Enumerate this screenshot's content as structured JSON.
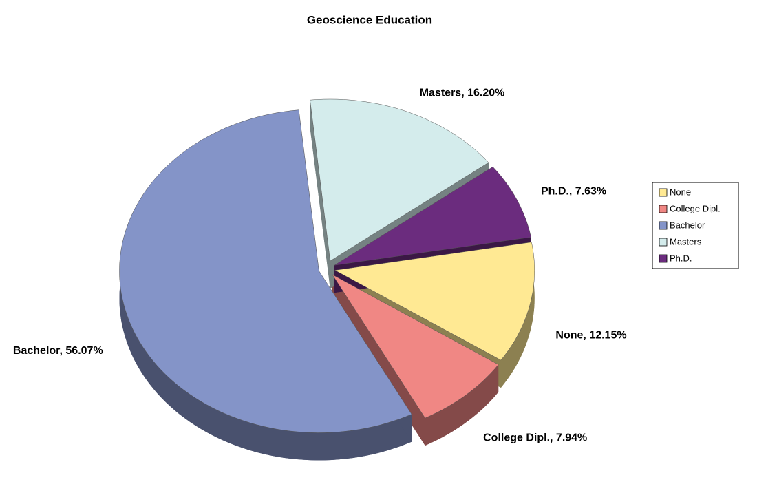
{
  "chart_data": {
    "type": "pie",
    "title": "Geoscience Education",
    "categories": [
      "None",
      "College Dipl.",
      "Bachelor",
      "Masters",
      "Ph.D."
    ],
    "values": [
      12.15,
      7.94,
      56.07,
      16.2,
      7.63
    ],
    "value_labels": [
      "None, 12.15%",
      "College Dipl., 7.94%",
      "Bachelor, 56.07%",
      "Masters, 16.20%",
      "Ph.D., 7.63%"
    ],
    "colors": [
      "#ffe993",
      "#f08784",
      "#8494c8",
      "#d4ecec",
      "#6b2c7e"
    ],
    "legend": "right"
  }
}
